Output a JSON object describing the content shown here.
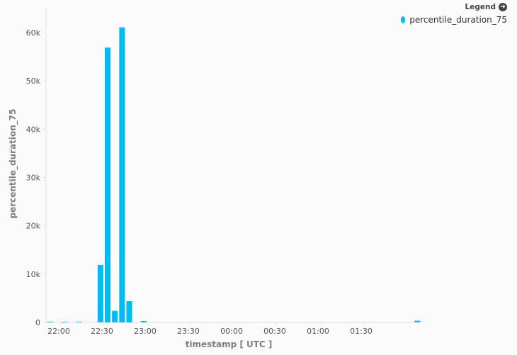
{
  "legend": {
    "title": "Legend",
    "items": [
      {
        "label": "percentile_duration_75",
        "color": "#00bcf2"
      }
    ]
  },
  "chart_data": {
    "type": "bar",
    "title": "",
    "xlabel": "timestamp [ UTC ]",
    "ylabel": "percentile_duration_75",
    "ylim": [
      0,
      65000
    ],
    "y_ticks": [
      0,
      10000,
      20000,
      30000,
      40000,
      50000,
      60000
    ],
    "y_tick_labels": [
      "0",
      "10k",
      "20k",
      "30k",
      "40k",
      "50k",
      "60k"
    ],
    "x_tick_labels": [
      "22:00",
      "22:30",
      "23:00",
      "23:30",
      "00:00",
      "00:30",
      "01:00",
      "01:30"
    ],
    "bar_interval_minutes": 5,
    "grid": false,
    "legend_position": "top-right",
    "series": [
      {
        "name": "percentile_duration_75",
        "color": "#00bcf2",
        "x": [
          "21:50",
          "21:55",
          "22:00",
          "22:05",
          "22:10",
          "22:15",
          "22:20",
          "22:25",
          "22:30",
          "22:35",
          "22:40",
          "22:45",
          "22:50",
          "22:55",
          "23:00",
          "23:05",
          "23:10",
          "23:15",
          "23:20",
          "23:25",
          "23:30",
          "23:35",
          "23:40",
          "23:45",
          "23:50",
          "23:55",
          "00:00",
          "00:05",
          "00:10",
          "00:15",
          "00:20",
          "00:25",
          "00:30",
          "00:35",
          "00:40",
          "00:45",
          "00:50",
          "00:55",
          "01:00",
          "01:05",
          "01:10",
          "01:15",
          "01:20",
          "01:25",
          "01:30",
          "01:35",
          "01:40",
          "01:45",
          "01:50",
          "01:55",
          "02:00",
          "02:05"
        ],
        "values": [
          40,
          0,
          60,
          0,
          80,
          0,
          0,
          11900,
          56900,
          2400,
          61100,
          4400,
          0,
          300,
          0,
          0,
          0,
          0,
          0,
          0,
          0,
          0,
          0,
          0,
          0,
          0,
          0,
          0,
          0,
          0,
          0,
          0,
          0,
          0,
          0,
          0,
          0,
          0,
          0,
          0,
          0,
          0,
          0,
          0,
          0,
          0,
          0,
          0,
          0,
          0,
          0,
          350
        ]
      }
    ]
  }
}
